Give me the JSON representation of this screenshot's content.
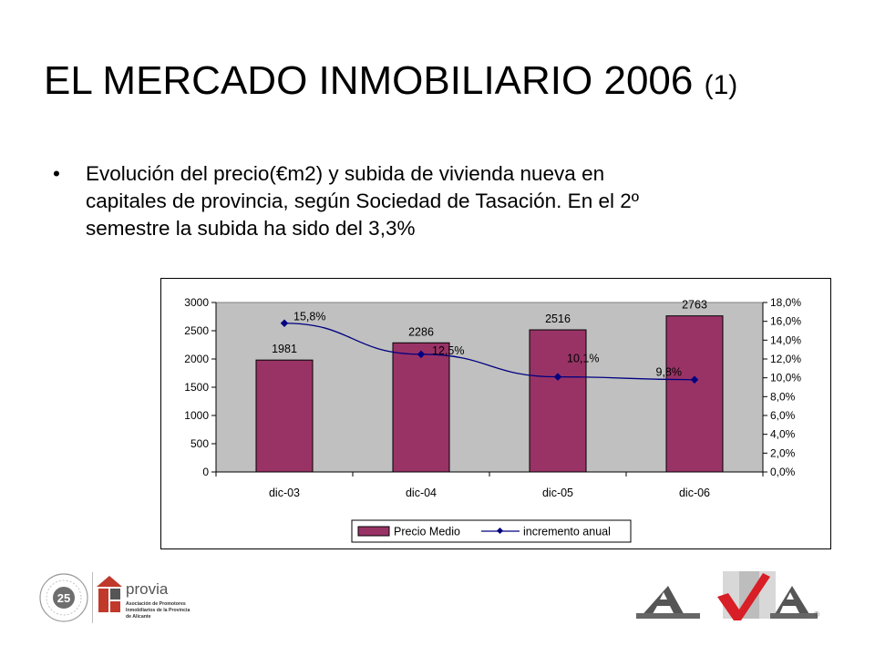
{
  "slide": {
    "title_main": "EL MERCADO INMOBILIARIO 2006",
    "title_sub": "(1)",
    "bullet_marker": "•",
    "bullet_lines": [
      "Evolución del precio(€m2) y subida de vivienda nueva en",
      "capitales de provincia, según Sociedad de Tasación. En el 2º",
      "semestre la subida ha sido del 3,3%"
    ]
  },
  "chart_data": {
    "type": "bar",
    "categories": [
      "dic-03",
      "dic-04",
      "dic-05",
      "dic-06"
    ],
    "series": [
      {
        "name": "Precio Medio",
        "kind": "bar",
        "axis": "left",
        "values": [
          1981,
          2286,
          2516,
          2763
        ],
        "labels": [
          "1981",
          "2286",
          "2516",
          "2763"
        ],
        "color": "#993366"
      },
      {
        "name": "incremento anual",
        "kind": "line",
        "axis": "right",
        "values": [
          15.8,
          12.5,
          10.1,
          9.8
        ],
        "labels": [
          "15,8%",
          "12,5%",
          "10,1%",
          "9,8%"
        ],
        "color": "#000080"
      }
    ],
    "y_left": {
      "ylim": [
        0,
        3000
      ],
      "ticks": [
        "0",
        "500",
        "1000",
        "1500",
        "2000",
        "2500",
        "3000"
      ]
    },
    "y_right": {
      "ylim": [
        0,
        18
      ],
      "ticks": [
        "0,0%",
        "2,0%",
        "4,0%",
        "6,0%",
        "8,0%",
        "10,0%",
        "12,0%",
        "14,0%",
        "16,0%",
        "18,0%"
      ]
    },
    "plot_background": "#c0c0c0",
    "grid": false,
    "legend_position": "bottom"
  },
  "logos": {
    "provia_name": "provia",
    "provia_text": [
      "Asociación de Promotores",
      "Inmobiliarios de la Provincia",
      "de Alicante"
    ],
    "seal_text": "25",
    "ava_text": "AVA"
  }
}
